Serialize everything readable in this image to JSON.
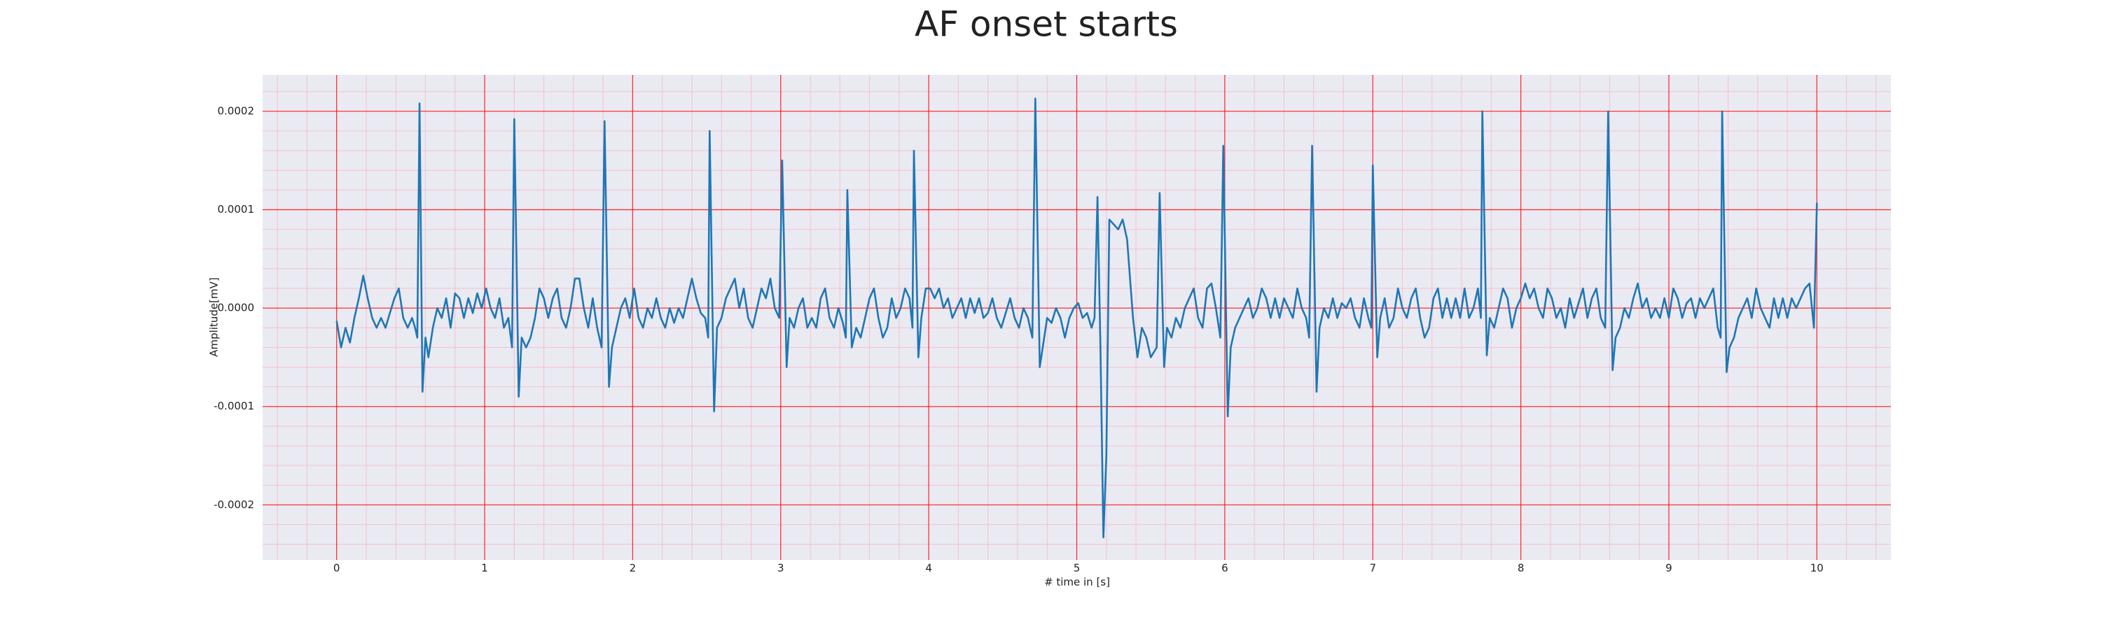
{
  "chart_data": {
    "type": "line",
    "title": "AF onset starts",
    "xlabel": "# time in [s]",
    "ylabel": "Amplitude[mV]",
    "color": "#1f77b4",
    "grid": true,
    "minor_grid": true,
    "xlim": [
      -0.5,
      10.5
    ],
    "xticks": [
      0,
      1,
      2,
      3,
      4,
      5,
      6,
      7,
      8,
      9,
      10
    ],
    "ylim": [
      -0.000256,
      0.000237
    ],
    "yticks": [
      -0.0002,
      -0.0001,
      {
        "value": 0,
        "label": "0.0000"
      },
      0.0001,
      0.0002
    ],
    "x": [
      0,
      0.03,
      0.06,
      0.09,
      0.12,
      0.15,
      0.18,
      0.21,
      0.24,
      0.27,
      0.3,
      0.33,
      0.36,
      0.39,
      0.42,
      0.45,
      0.48,
      0.51,
      0.53,
      0.545,
      0.56,
      0.58,
      0.6,
      0.62,
      0.65,
      0.68,
      0.71,
      0.74,
      0.77,
      0.8,
      0.83,
      0.86,
      0.89,
      0.92,
      0.95,
      0.98,
      1.01,
      1.04,
      1.07,
      1.1,
      1.13,
      1.16,
      1.185,
      1.2,
      1.23,
      1.25,
      1.28,
      1.31,
      1.34,
      1.37,
      1.4,
      1.43,
      1.46,
      1.49,
      1.52,
      1.55,
      1.58,
      1.61,
      1.64,
      1.67,
      1.7,
      1.73,
      1.76,
      1.79,
      1.81,
      1.84,
      1.86,
      1.89,
      1.92,
      1.95,
      1.98,
      2.01,
      2.04,
      2.07,
      2.1,
      2.13,
      2.16,
      2.19,
      2.22,
      2.25,
      2.28,
      2.31,
      2.34,
      2.37,
      2.4,
      2.43,
      2.46,
      2.49,
      2.51,
      2.52,
      2.55,
      2.57,
      2.6,
      2.63,
      2.66,
      2.69,
      2.72,
      2.75,
      2.78,
      2.81,
      2.84,
      2.87,
      2.9,
      2.93,
      2.96,
      2.99,
      3.01,
      3.04,
      3.06,
      3.09,
      3.12,
      3.15,
      3.18,
      3.21,
      3.24,
      3.27,
      3.3,
      3.33,
      3.36,
      3.39,
      3.42,
      3.44,
      3.45,
      3.48,
      3.51,
      3.54,
      3.57,
      3.6,
      3.63,
      3.66,
      3.69,
      3.72,
      3.75,
      3.78,
      3.81,
      3.84,
      3.87,
      3.89,
      3.9,
      3.93,
      3.95,
      3.98,
      4.01,
      4.04,
      4.07,
      4.1,
      4.13,
      4.16,
      4.19,
      4.22,
      4.25,
      4.28,
      4.31,
      4.34,
      4.37,
      4.4,
      4.43,
      4.46,
      4.49,
      4.52,
      4.55,
      4.58,
      4.61,
      4.64,
      4.67,
      4.7,
      4.72,
      4.75,
      4.77,
      4.8,
      4.83,
      4.86,
      4.89,
      4.92,
      4.95,
      4.98,
      5.01,
      5.04,
      5.07,
      5.1,
      5.12,
      5.14,
      5.16,
      5.18,
      5.2,
      5.22,
      5.25,
      5.28,
      5.31,
      5.34,
      5.36,
      5.38,
      5.41,
      5.44,
      5.47,
      5.5,
      5.54,
      5.56,
      5.59,
      5.61,
      5.64,
      5.67,
      5.7,
      5.73,
      5.76,
      5.79,
      5.82,
      5.85,
      5.88,
      5.91,
      5.94,
      5.97,
      5.99,
      6.02,
      6.04,
      6.07,
      6.1,
      6.13,
      6.16,
      6.19,
      6.22,
      6.25,
      6.28,
      6.31,
      6.34,
      6.37,
      6.4,
      6.43,
      6.46,
      6.49,
      6.52,
      6.55,
      6.57,
      6.59,
      6.62,
      6.64,
      6.67,
      6.7,
      6.73,
      6.76,
      6.79,
      6.82,
      6.85,
      6.88,
      6.91,
      6.94,
      6.97,
      6.99,
      7,
      7.03,
      7.05,
      7.08,
      7.11,
      7.14,
      7.17,
      7.2,
      7.23,
      7.26,
      7.29,
      7.32,
      7.35,
      7.38,
      7.41,
      7.44,
      7.47,
      7.5,
      7.53,
      7.56,
      7.59,
      7.62,
      7.65,
      7.68,
      7.71,
      7.73,
      7.74,
      7.77,
      7.79,
      7.82,
      7.85,
      7.88,
      7.91,
      7.94,
      7.97,
      8,
      8.03,
      8.06,
      8.09,
      8.12,
      8.15,
      8.18,
      8.21,
      8.24,
      8.27,
      8.3,
      8.33,
      8.36,
      8.39,
      8.42,
      8.45,
      8.48,
      8.51,
      8.54,
      8.57,
      8.59,
      8.62,
      8.64,
      8.67,
      8.7,
      8.73,
      8.76,
      8.79,
      8.82,
      8.85,
      8.88,
      8.91,
      8.94,
      8.97,
      9,
      9.03,
      9.06,
      9.09,
      9.12,
      9.15,
      9.18,
      9.21,
      9.24,
      9.27,
      9.3,
      9.33,
      9.35,
      9.36,
      9.39,
      9.41,
      9.44,
      9.47,
      9.5,
      9.53,
      9.56,
      9.59,
      9.62,
      9.65,
      9.68,
      9.71,
      9.74,
      9.77,
      9.8,
      9.83,
      9.86,
      9.89,
      9.92,
      9.95,
      9.98,
      10
    ],
    "values": [
      -1.3e-05,
      -4e-05,
      -2e-05,
      -3.5e-05,
      -1e-05,
      1e-05,
      3.3e-05,
      1e-05,
      -1e-05,
      -2e-05,
      -1e-05,
      -2e-05,
      -5e-06,
      1e-05,
      2e-05,
      -1e-05,
      -2e-05,
      -1e-05,
      -2e-05,
      -3e-05,
      0.000208,
      -8.5e-05,
      -3e-05,
      -5e-05,
      -2e-05,
      0,
      -1e-05,
      1e-05,
      -2e-05,
      1.5e-05,
      1e-05,
      -1e-05,
      1e-05,
      -5e-06,
      1.5e-05,
      0,
      2e-05,
      0,
      -1e-05,
      1e-05,
      -2e-05,
      -1e-05,
      -4e-05,
      0.000192,
      -9e-05,
      -3e-05,
      -4e-05,
      -3e-05,
      -1e-05,
      2e-05,
      1e-05,
      -1e-05,
      1e-05,
      2e-05,
      -1e-05,
      -2e-05,
      0,
      3e-05,
      3e-05,
      0,
      -2e-05,
      1e-05,
      -2e-05,
      -4e-05,
      0.00019,
      -8e-05,
      -4e-05,
      -2e-05,
      0,
      1e-05,
      -1e-05,
      2e-05,
      -1e-05,
      -2e-05,
      0,
      -1e-05,
      1e-05,
      -1e-05,
      -2e-05,
      0,
      -1.5e-05,
      0,
      -1e-05,
      1e-05,
      3e-05,
      1e-05,
      -5e-06,
      -1e-05,
      -3e-05,
      0.00018,
      -0.000105,
      -2e-05,
      -1e-05,
      1e-05,
      2e-05,
      3e-05,
      0,
      2e-05,
      -1e-05,
      -2e-05,
      0,
      2e-05,
      1e-05,
      3e-05,
      0,
      -1e-05,
      0.00015,
      -6e-05,
      -1e-05,
      -2e-05,
      0,
      1e-05,
      -2e-05,
      -1e-05,
      -2e-05,
      1e-05,
      2e-05,
      -1e-05,
      -2e-05,
      0,
      -1.5e-05,
      -3e-05,
      0.00012,
      -4e-05,
      -2e-05,
      -3e-05,
      -1e-05,
      1e-05,
      2e-05,
      -1e-05,
      -3e-05,
      -2e-05,
      1e-05,
      -1e-05,
      0,
      2e-05,
      1e-05,
      -2e-05,
      0.00016,
      -5e-05,
      -1e-05,
      2e-05,
      2e-05,
      1e-05,
      2e-05,
      0,
      1e-05,
      -1e-05,
      0,
      1e-05,
      -1e-05,
      1e-05,
      -5e-06,
      1e-05,
      -1e-05,
      -5e-06,
      1e-05,
      -1e-05,
      -2e-05,
      -5e-06,
      1e-05,
      -1e-05,
      -2e-05,
      0,
      -1e-05,
      -3e-05,
      0.000213,
      -6e-05,
      -4e-05,
      -1e-05,
      -1.5e-05,
      0,
      -1e-05,
      -3e-05,
      -1e-05,
      0,
      5e-06,
      -1e-05,
      -5e-06,
      -2e-05,
      -1e-05,
      0.000113,
      -4e-05,
      -0.000233,
      -0.00015,
      9e-05,
      8.5e-05,
      8e-05,
      9e-05,
      7e-05,
      3e-05,
      -1e-05,
      -5e-05,
      -2e-05,
      -3e-05,
      -5e-05,
      -4e-05,
      0.000117,
      -6e-05,
      -2e-05,
      -3e-05,
      -1e-05,
      -2e-05,
      0,
      1e-05,
      2e-05,
      -1e-05,
      -2e-05,
      2e-05,
      2.5e-05,
      0,
      -3e-05,
      0.000165,
      -0.00011,
      -4e-05,
      -2e-05,
      -1e-05,
      0,
      1e-05,
      -1e-05,
      0,
      2e-05,
      1e-05,
      -1e-05,
      1e-05,
      -1e-05,
      1e-05,
      0,
      -1e-05,
      2e-05,
      0,
      -1e-05,
      -3e-05,
      0.000165,
      -8.5e-05,
      -2e-05,
      0,
      -1e-05,
      1e-05,
      -1e-05,
      5e-06,
      0,
      1e-05,
      -1e-05,
      -2e-05,
      1e-05,
      -1e-05,
      -2e-05,
      0.000145,
      -5e-05,
      -1e-05,
      1e-05,
      -2e-05,
      -1e-05,
      2e-05,
      0,
      -1e-05,
      1e-05,
      2e-05,
      -1e-05,
      -3e-05,
      -2e-05,
      1e-05,
      2e-05,
      -1e-05,
      1e-05,
      -1e-05,
      1e-05,
      -1e-05,
      2e-05,
      -1e-05,
      0,
      2e-05,
      -1e-05,
      0.0002,
      -4.8e-05,
      -1e-05,
      -2e-05,
      0,
      2e-05,
      1e-05,
      -2e-05,
      0,
      1e-05,
      2.5e-05,
      1e-05,
      2e-05,
      0,
      -1e-05,
      2e-05,
      1e-05,
      -1e-05,
      0,
      -2e-05,
      1e-05,
      -1e-05,
      5e-06,
      2e-05,
      -1e-05,
      1e-05,
      2e-05,
      -1e-05,
      -2e-05,
      0.0002,
      -6.3e-05,
      -3e-05,
      -2e-05,
      0,
      -1e-05,
      1e-05,
      2.5e-05,
      0,
      1e-05,
      -1e-05,
      0,
      -1e-05,
      1e-05,
      -1e-05,
      2e-05,
      1e-05,
      -1e-05,
      5e-06,
      1e-05,
      -1e-05,
      1e-05,
      0,
      1e-05,
      2e-05,
      -2e-05,
      -3e-05,
      0.0002,
      -6.5e-05,
      -4e-05,
      -3e-05,
      -1e-05,
      0,
      1e-05,
      -1e-05,
      2e-05,
      0,
      -1e-05,
      -2e-05,
      1e-05,
      -1e-05,
      1e-05,
      -1e-05,
      1e-05,
      0,
      1e-05,
      2e-05,
      2.5e-05,
      -2e-05,
      0.000107
    ]
  }
}
